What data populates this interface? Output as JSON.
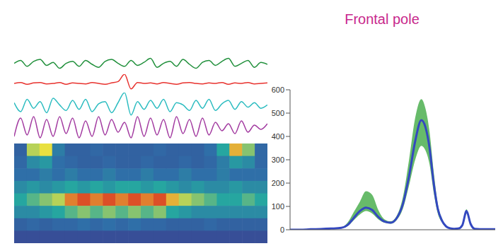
{
  "chart_data": [
    {
      "type": "line",
      "tick_labels": false,
      "color": "#1f8f3a",
      "ylim": [
        -1,
        1
      ],
      "values": [
        0.1,
        0.4,
        -0.2,
        0.3,
        0.5,
        -0.1,
        0.2,
        -0.4,
        0.1,
        0.3,
        -0.2,
        0.4,
        0.0,
        -0.3,
        0.3,
        0.5,
        0.1,
        -0.2,
        0.4,
        -0.1,
        0.2,
        0.6,
        -0.3,
        0.1,
        0.3,
        -0.2,
        0.5,
        0.0,
        -0.4,
        0.2,
        0.4,
        -0.1,
        0.3,
        0.6,
        -0.2,
        0.1,
        0.4,
        -0.3,
        0.2,
        0.0
      ]
    },
    {
      "type": "line",
      "tick_labels": false,
      "color": "#e8322e",
      "ylim": [
        -1,
        1
      ],
      "values": [
        0.0,
        0.1,
        -0.1,
        0.05,
        0.1,
        -0.05,
        0.0,
        0.1,
        -0.1,
        0.05,
        0.0,
        -0.05,
        0.1,
        0.0,
        -0.1,
        0.05,
        0.2,
        1.0,
        -0.6,
        0.1,
        0.0,
        0.05,
        -0.05,
        0.1,
        0.0,
        -0.1,
        0.05,
        0.1,
        0.0,
        -0.05,
        0.05,
        0.0,
        0.1,
        -0.1,
        0.05,
        0.0,
        0.1,
        -0.05,
        0.0,
        0.05
      ]
    },
    {
      "type": "line",
      "tick_labels": false,
      "color": "#2bbcc0",
      "ylim": [
        -1.2,
        1.2
      ],
      "values": [
        0.3,
        -0.5,
        0.6,
        -0.2,
        0.4,
        -0.6,
        0.7,
        0.1,
        -0.4,
        0.5,
        -0.3,
        0.6,
        -0.5,
        0.2,
        0.4,
        -0.6,
        0.3,
        1.2,
        -0.8,
        0.4,
        -0.3,
        0.5,
        -0.2,
        0.6,
        -0.5,
        0.3,
        0.1,
        -0.4,
        0.5,
        -0.2,
        0.6,
        -0.4,
        0.2,
        0.5,
        -0.3,
        0.4,
        -0.1,
        0.3,
        -0.2,
        0.1
      ]
    },
    {
      "type": "line",
      "tick_labels": false,
      "color": "#a23aa0",
      "ylim": [
        -1,
        1
      ],
      "values": [
        -0.6,
        0.7,
        -0.5,
        0.8,
        -0.7,
        0.6,
        -0.6,
        0.8,
        -0.4,
        0.7,
        -0.7,
        0.5,
        -0.6,
        0.8,
        -0.5,
        0.6,
        -0.3,
        0.4,
        -0.7,
        0.8,
        -0.6,
        0.7,
        -0.5,
        0.6,
        -0.7,
        0.8,
        -0.4,
        0.6,
        -0.6,
        0.7,
        -0.5,
        0.4,
        -0.2,
        0.3,
        -0.4,
        0.5,
        -0.3,
        0.2,
        -0.1,
        0.3
      ]
    },
    {
      "type": "heatmap",
      "tick_labels": false,
      "color_range": [
        0,
        1
      ],
      "cells": [
        [
          0.3,
          0.75,
          0.8,
          0.45,
          0.3,
          0.3,
          0.35,
          0.3,
          0.3,
          0.3,
          0.3,
          0.35,
          0.3,
          0.3,
          0.3,
          0.4,
          0.6,
          0.85,
          0.7,
          0.35
        ],
        [
          0.35,
          0.5,
          0.55,
          0.4,
          0.35,
          0.3,
          0.3,
          0.35,
          0.3,
          0.3,
          0.35,
          0.3,
          0.3,
          0.35,
          0.3,
          0.35,
          0.45,
          0.55,
          0.5,
          0.35
        ],
        [
          0.4,
          0.4,
          0.45,
          0.4,
          0.45,
          0.4,
          0.4,
          0.45,
          0.4,
          0.4,
          0.45,
          0.4,
          0.4,
          0.45,
          0.4,
          0.4,
          0.45,
          0.4,
          0.4,
          0.4
        ],
        [
          0.5,
          0.55,
          0.5,
          0.55,
          0.6,
          0.55,
          0.6,
          0.55,
          0.6,
          0.6,
          0.55,
          0.6,
          0.55,
          0.5,
          0.55,
          0.5,
          0.5,
          0.55,
          0.5,
          0.5
        ],
        [
          0.6,
          0.65,
          0.7,
          0.75,
          0.9,
          0.95,
          0.9,
          0.95,
          0.9,
          0.95,
          0.9,
          0.95,
          0.85,
          0.75,
          0.7,
          0.65,
          0.6,
          0.6,
          0.65,
          0.6
        ],
        [
          0.5,
          0.5,
          0.55,
          0.6,
          0.65,
          0.7,
          0.65,
          0.7,
          0.65,
          0.7,
          0.65,
          0.7,
          0.6,
          0.55,
          0.5,
          0.5,
          0.5,
          0.5,
          0.5,
          0.5
        ],
        [
          0.3,
          0.35,
          0.3,
          0.35,
          0.35,
          0.4,
          0.35,
          0.4,
          0.35,
          0.4,
          0.35,
          0.35,
          0.3,
          0.3,
          0.3,
          0.35,
          0.3,
          0.3,
          0.3,
          0.3
        ],
        [
          0.15,
          0.15,
          0.15,
          0.15,
          0.15,
          0.15,
          0.15,
          0.15,
          0.15,
          0.15,
          0.15,
          0.15,
          0.15,
          0.15,
          0.15,
          0.15,
          0.15,
          0.15,
          0.15,
          0.15
        ]
      ]
    },
    {
      "type": "line",
      "title": "Frontal pole",
      "tick_labels": "y",
      "xlim": [
        0,
        100
      ],
      "ylim": [
        0,
        600
      ],
      "yticks": [
        0,
        100,
        200,
        300,
        400,
        500,
        600
      ],
      "x": [
        0,
        5,
        10,
        15,
        20,
        25,
        28,
        31,
        34,
        37,
        40,
        43,
        46,
        49,
        52,
        55,
        58,
        61,
        64,
        66,
        68,
        70,
        72,
        74,
        76,
        78,
        80,
        82,
        84,
        86,
        88,
        90,
        95,
        100
      ],
      "series": [
        {
          "type": "band",
          "color": "#4caf50",
          "lower": [
            0,
            0,
            1,
            2,
            4,
            6,
            15,
            40,
            65,
            80,
            70,
            45,
            30,
            26,
            42,
            90,
            190,
            300,
            360,
            340,
            280,
            160,
            70,
            32,
            12,
            5,
            3,
            4,
            16,
            70,
            20,
            3,
            1,
            1
          ],
          "upper": [
            0,
            0,
            3,
            4,
            6,
            10,
            30,
            75,
            120,
            165,
            150,
            85,
            45,
            36,
            60,
            140,
            300,
            480,
            560,
            520,
            420,
            250,
            110,
            50,
            18,
            8,
            5,
            6,
            24,
            88,
            30,
            5,
            3,
            3
          ]
        },
        {
          "type": "line",
          "color": "#3448c0",
          "values": [
            0,
            0,
            2,
            3,
            5,
            8,
            20,
            50,
            80,
            95,
            85,
            55,
            35,
            30,
            50,
            110,
            230,
            380,
            470,
            440,
            350,
            200,
            90,
            40,
            15,
            6,
            4,
            5,
            20,
            80,
            25,
            4,
            2,
            2
          ]
        }
      ]
    }
  ]
}
